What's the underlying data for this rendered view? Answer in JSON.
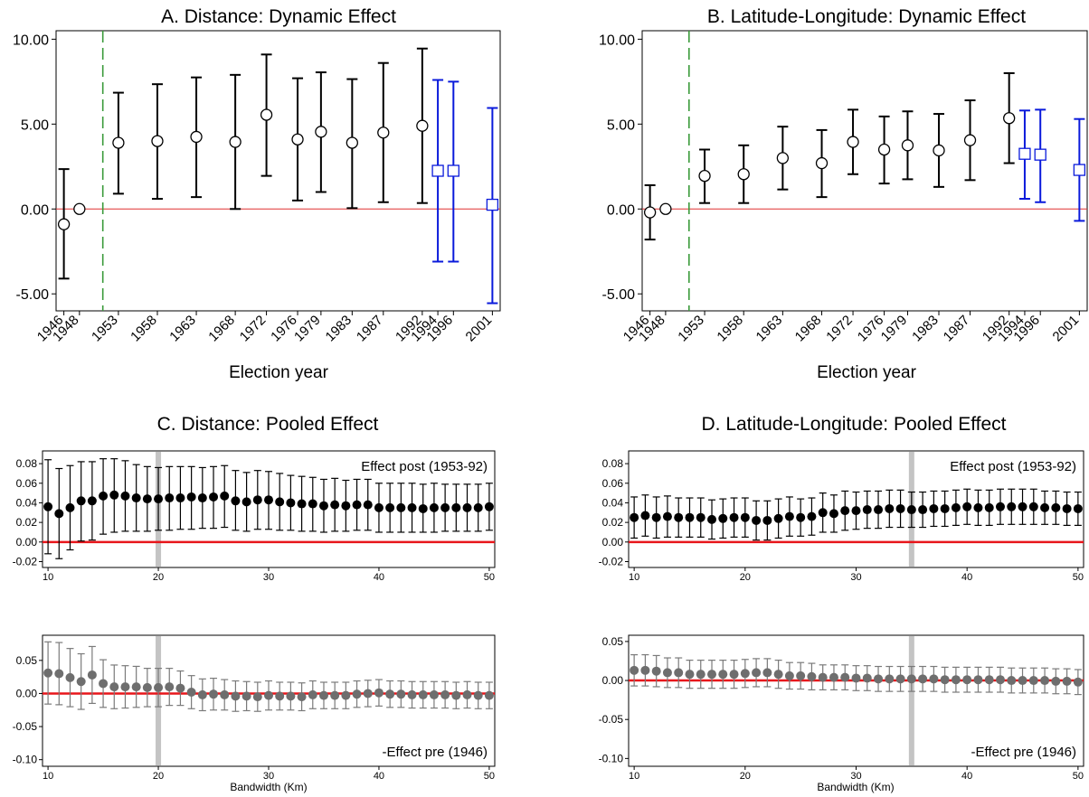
{
  "chart_data": [
    {
      "id": "A",
      "type": "scatter",
      "title": "A. Distance: Dynamic Effect",
      "xlabel": "Election year",
      "ylabel": "",
      "ylim": [
        -6.0,
        10.5
      ],
      "yticks": [
        -5,
        0,
        5,
        10
      ],
      "ytick_labels": [
        "-5.00",
        "0.00",
        "5.00",
        "10.00"
      ],
      "x_min": 1945,
      "x_max": 2002,
      "xticks": [
        1946,
        1948,
        1953,
        1958,
        1963,
        1968,
        1972,
        1976,
        1979,
        1983,
        1987,
        1992,
        1994,
        1996,
        2001
      ],
      "zero_line_color": "#e03030",
      "vline_x": 1951,
      "vline_color": "#3a9a3a",
      "series": [
        {
          "color": "#000000",
          "marker": "circle",
          "x": [
            1946,
            1948,
            1953,
            1958,
            1963,
            1968,
            1972,
            1976,
            1979,
            1983,
            1987,
            1992
          ],
          "y": [
            -0.9,
            0.0,
            3.9,
            4.0,
            4.25,
            3.95,
            5.55,
            4.1,
            4.55,
            3.9,
            4.5,
            4.9
          ],
          "lo": [
            -4.1,
            null,
            0.9,
            0.6,
            0.7,
            0.0,
            1.95,
            0.5,
            1.0,
            0.05,
            0.4,
            0.35
          ],
          "hi": [
            2.35,
            null,
            6.85,
            7.35,
            7.75,
            7.9,
            9.1,
            7.7,
            8.05,
            7.65,
            8.6,
            9.45
          ]
        },
        {
          "color": "#0a1adb",
          "marker": "square",
          "x": [
            1994,
            1996,
            2001
          ],
          "y": [
            2.25,
            2.25,
            0.25
          ],
          "lo": [
            -3.1,
            -3.1,
            -5.55
          ],
          "hi": [
            7.6,
            7.5,
            5.95
          ]
        }
      ]
    },
    {
      "id": "B",
      "type": "scatter",
      "title": "B. Latitude-Longitude: Dynamic Effect",
      "xlabel": "Election year",
      "ylabel": "",
      "ylim": [
        -6.0,
        10.5
      ],
      "yticks": [
        -5,
        0,
        5,
        10
      ],
      "ytick_labels": [
        "-5.00",
        "0.00",
        "5.00",
        "10.00"
      ],
      "x_min": 1945,
      "x_max": 2002,
      "xticks": [
        1946,
        1948,
        1953,
        1958,
        1963,
        1968,
        1972,
        1976,
        1979,
        1983,
        1987,
        1992,
        1994,
        1996,
        2001
      ],
      "zero_line_color": "#e03030",
      "vline_x": 1951,
      "vline_color": "#3a9a3a",
      "series": [
        {
          "color": "#000000",
          "marker": "circle",
          "x": [
            1946,
            1948,
            1953,
            1958,
            1963,
            1968,
            1972,
            1976,
            1979,
            1983,
            1987,
            1992
          ],
          "y": [
            -0.2,
            0.0,
            1.95,
            2.05,
            3.0,
            2.7,
            3.95,
            3.5,
            3.75,
            3.45,
            4.05,
            5.35
          ],
          "lo": [
            -1.8,
            null,
            0.35,
            0.35,
            1.15,
            0.7,
            2.05,
            1.5,
            1.75,
            1.3,
            1.7,
            2.7
          ],
          "hi": [
            1.4,
            null,
            3.5,
            3.75,
            4.85,
            4.65,
            5.85,
            5.45,
            5.75,
            5.6,
            6.4,
            8.0
          ]
        },
        {
          "color": "#0a1adb",
          "marker": "square",
          "x": [
            1994,
            1996,
            2001
          ],
          "y": [
            3.25,
            3.2,
            2.3
          ],
          "lo": [
            0.6,
            0.4,
            -0.7
          ],
          "hi": [
            5.8,
            5.85,
            5.3
          ]
        }
      ]
    },
    {
      "id": "C1",
      "type": "scatter",
      "title": "C. Distance: Pooled Effect",
      "xlabel": "",
      "annotation": "Effect post (1953-92)",
      "annotation_pos": "top-right",
      "ylim": [
        -0.026,
        0.093
      ],
      "yticks": [
        -0.02,
        0.0,
        0.02,
        0.04,
        0.06,
        0.08
      ],
      "ytick_labels": [
        "-0.02",
        "0.00",
        "0.02",
        "0.04",
        "0.06",
        "0.08"
      ],
      "xlim": [
        9.5,
        50.5
      ],
      "xticks": [
        10,
        20,
        30,
        40,
        50
      ],
      "highlight_x": 20,
      "marker_color": "#000000",
      "errbar_color": "#000000",
      "x": [
        10,
        11,
        12,
        13,
        14,
        15,
        16,
        17,
        18,
        19,
        20,
        21,
        22,
        23,
        24,
        25,
        26,
        27,
        28,
        29,
        30,
        31,
        32,
        33,
        34,
        35,
        36,
        37,
        38,
        39,
        40,
        41,
        42,
        43,
        44,
        45,
        46,
        47,
        48,
        49,
        50
      ],
      "y": [
        0.036,
        0.029,
        0.035,
        0.042,
        0.042,
        0.047,
        0.048,
        0.047,
        0.045,
        0.044,
        0.044,
        0.045,
        0.045,
        0.046,
        0.045,
        0.046,
        0.047,
        0.042,
        0.041,
        0.043,
        0.043,
        0.041,
        0.04,
        0.039,
        0.039,
        0.037,
        0.038,
        0.037,
        0.038,
        0.038,
        0.035,
        0.035,
        0.035,
        0.035,
        0.034,
        0.035,
        0.035,
        0.035,
        0.035,
        0.035,
        0.036
      ],
      "lo": [
        -0.012,
        -0.017,
        -0.008,
        0.001,
        0.002,
        0.008,
        0.01,
        0.011,
        0.011,
        0.011,
        0.012,
        0.012,
        0.013,
        0.013,
        0.014,
        0.014,
        0.015,
        0.012,
        0.011,
        0.013,
        0.013,
        0.012,
        0.012,
        0.011,
        0.011,
        0.01,
        0.011,
        0.011,
        0.012,
        0.012,
        0.01,
        0.01,
        0.01,
        0.01,
        0.01,
        0.01,
        0.011,
        0.011,
        0.011,
        0.011,
        0.012
      ],
      "hi": [
        0.084,
        0.075,
        0.078,
        0.082,
        0.082,
        0.085,
        0.085,
        0.083,
        0.079,
        0.077,
        0.076,
        0.077,
        0.077,
        0.077,
        0.076,
        0.077,
        0.078,
        0.073,
        0.071,
        0.073,
        0.072,
        0.07,
        0.068,
        0.067,
        0.066,
        0.064,
        0.065,
        0.063,
        0.064,
        0.064,
        0.06,
        0.06,
        0.06,
        0.06,
        0.059,
        0.06,
        0.059,
        0.059,
        0.059,
        0.059,
        0.06
      ]
    },
    {
      "id": "C2",
      "type": "scatter",
      "title": "",
      "xlabel": "Bandwidth (Km)",
      "annotation": "-Effect pre (1946)",
      "annotation_pos": "bottom-right",
      "ylim": [
        -0.11,
        0.088
      ],
      "yticks": [
        -0.1,
        -0.05,
        0.0,
        0.05
      ],
      "ytick_labels": [
        "-0.10",
        "-0.05",
        "0.00",
        "0.05"
      ],
      "xlim": [
        9.5,
        50.5
      ],
      "xticks": [
        10,
        20,
        30,
        40,
        50
      ],
      "highlight_x": 20,
      "marker_color": "#6e6e6e",
      "errbar_color": "#7a7a7a",
      "x": [
        10,
        11,
        12,
        13,
        14,
        15,
        16,
        17,
        18,
        19,
        20,
        21,
        22,
        23,
        24,
        25,
        26,
        27,
        28,
        29,
        30,
        31,
        32,
        33,
        34,
        35,
        36,
        37,
        38,
        39,
        40,
        41,
        42,
        43,
        44,
        45,
        46,
        47,
        48,
        49,
        50
      ],
      "y": [
        0.031,
        0.03,
        0.024,
        0.018,
        0.028,
        0.015,
        0.01,
        0.01,
        0.01,
        0.009,
        0.009,
        0.01,
        0.008,
        0.002,
        -0.002,
        -0.001,
        -0.002,
        -0.004,
        -0.004,
        -0.005,
        -0.003,
        -0.004,
        -0.004,
        -0.005,
        -0.002,
        -0.003,
        -0.003,
        -0.003,
        -0.001,
        0.0,
        0.001,
        -0.001,
        -0.001,
        -0.002,
        -0.002,
        -0.002,
        -0.002,
        -0.003,
        -0.002,
        -0.003,
        -0.003
      ],
      "lo": [
        -0.016,
        -0.017,
        -0.02,
        -0.024,
        -0.015,
        -0.021,
        -0.023,
        -0.022,
        -0.021,
        -0.02,
        -0.02,
        -0.018,
        -0.018,
        -0.023,
        -0.026,
        -0.025,
        -0.025,
        -0.027,
        -0.026,
        -0.027,
        -0.025,
        -0.025,
        -0.025,
        -0.026,
        -0.023,
        -0.023,
        -0.023,
        -0.023,
        -0.021,
        -0.02,
        -0.019,
        -0.021,
        -0.021,
        -0.022,
        -0.022,
        -0.022,
        -0.022,
        -0.023,
        -0.022,
        -0.023,
        -0.023
      ],
      "hi": [
        0.078,
        0.077,
        0.068,
        0.06,
        0.071,
        0.051,
        0.043,
        0.042,
        0.041,
        0.038,
        0.038,
        0.038,
        0.034,
        0.027,
        0.022,
        0.023,
        0.021,
        0.019,
        0.018,
        0.017,
        0.019,
        0.017,
        0.017,
        0.016,
        0.019,
        0.017,
        0.017,
        0.017,
        0.019,
        0.02,
        0.021,
        0.019,
        0.019,
        0.018,
        0.018,
        0.018,
        0.018,
        0.017,
        0.018,
        0.017,
        0.017
      ]
    },
    {
      "id": "D1",
      "type": "scatter",
      "title": "D. Latitude-Longitude: Pooled Effect",
      "xlabel": "",
      "annotation": "Effect post (1953-92)",
      "annotation_pos": "top-right",
      "ylim": [
        -0.026,
        0.093
      ],
      "yticks": [
        -0.02,
        0.0,
        0.02,
        0.04,
        0.06,
        0.08
      ],
      "ytick_labels": [
        "-0.02",
        "0.00",
        "0.02",
        "0.04",
        "0.06",
        "0.08"
      ],
      "xlim": [
        9.5,
        50.5
      ],
      "xticks": [
        10,
        20,
        30,
        40,
        50
      ],
      "highlight_x": 35,
      "marker_color": "#000000",
      "errbar_color": "#000000",
      "x": [
        10,
        11,
        12,
        13,
        14,
        15,
        16,
        17,
        18,
        19,
        20,
        21,
        22,
        23,
        24,
        25,
        26,
        27,
        28,
        29,
        30,
        31,
        32,
        33,
        34,
        35,
        36,
        37,
        38,
        39,
        40,
        41,
        42,
        43,
        44,
        45,
        46,
        47,
        48,
        49,
        50
      ],
      "y": [
        0.025,
        0.027,
        0.025,
        0.026,
        0.025,
        0.025,
        0.025,
        0.023,
        0.024,
        0.025,
        0.025,
        0.022,
        0.022,
        0.024,
        0.026,
        0.025,
        0.026,
        0.03,
        0.029,
        0.032,
        0.032,
        0.033,
        0.033,
        0.034,
        0.034,
        0.033,
        0.033,
        0.034,
        0.034,
        0.035,
        0.036,
        0.035,
        0.035,
        0.036,
        0.036,
        0.036,
        0.036,
        0.035,
        0.035,
        0.034,
        0.034
      ],
      "lo": [
        0.004,
        0.006,
        0.004,
        0.005,
        0.005,
        0.005,
        0.005,
        0.003,
        0.004,
        0.005,
        0.005,
        0.002,
        0.002,
        0.004,
        0.006,
        0.006,
        0.007,
        0.01,
        0.01,
        0.012,
        0.013,
        0.014,
        0.014,
        0.015,
        0.015,
        0.015,
        0.015,
        0.016,
        0.016,
        0.017,
        0.018,
        0.017,
        0.017,
        0.018,
        0.018,
        0.018,
        0.018,
        0.018,
        0.018,
        0.017,
        0.017
      ],
      "hi": [
        0.046,
        0.048,
        0.046,
        0.047,
        0.045,
        0.045,
        0.045,
        0.043,
        0.044,
        0.045,
        0.045,
        0.042,
        0.042,
        0.044,
        0.046,
        0.044,
        0.045,
        0.05,
        0.048,
        0.052,
        0.051,
        0.052,
        0.052,
        0.053,
        0.053,
        0.051,
        0.051,
        0.052,
        0.052,
        0.053,
        0.054,
        0.053,
        0.053,
        0.054,
        0.054,
        0.054,
        0.054,
        0.052,
        0.052,
        0.051,
        0.051
      ]
    },
    {
      "id": "D2",
      "type": "scatter",
      "title": "",
      "xlabel": "Bandwidth (Km)",
      "annotation": "-Effect pre (1946)",
      "annotation_pos": "bottom-right",
      "ylim": [
        -0.11,
        0.058
      ],
      "yticks": [
        -0.1,
        -0.05,
        0.0,
        0.05
      ],
      "ytick_labels": [
        "-0.10",
        "-0.05",
        "0.00",
        "0.05"
      ],
      "xlim": [
        9.5,
        50.5
      ],
      "xticks": [
        10,
        20,
        30,
        40,
        50
      ],
      "highlight_x": 35,
      "marker_color": "#6e6e6e",
      "errbar_color": "#7a7a7a",
      "x": [
        10,
        11,
        12,
        13,
        14,
        15,
        16,
        17,
        18,
        19,
        20,
        21,
        22,
        23,
        24,
        25,
        26,
        27,
        28,
        29,
        30,
        31,
        32,
        33,
        34,
        35,
        36,
        37,
        38,
        39,
        40,
        41,
        42,
        43,
        44,
        45,
        46,
        47,
        48,
        49,
        50
      ],
      "y": [
        0.013,
        0.013,
        0.012,
        0.01,
        0.01,
        0.008,
        0.008,
        0.008,
        0.008,
        0.008,
        0.009,
        0.01,
        0.01,
        0.008,
        0.006,
        0.006,
        0.005,
        0.004,
        0.004,
        0.004,
        0.003,
        0.003,
        0.002,
        0.002,
        0.002,
        0.002,
        0.002,
        0.002,
        0.001,
        0.001,
        0.001,
        0.001,
        0.001,
        0.001,
        0.0,
        0.0,
        0.0,
        0.0,
        -0.001,
        -0.001,
        -0.002
      ],
      "lo": [
        -0.007,
        -0.007,
        -0.008,
        -0.009,
        -0.009,
        -0.01,
        -0.01,
        -0.01,
        -0.01,
        -0.01,
        -0.009,
        -0.008,
        -0.008,
        -0.01,
        -0.011,
        -0.011,
        -0.012,
        -0.012,
        -0.012,
        -0.012,
        -0.013,
        -0.013,
        -0.014,
        -0.014,
        -0.014,
        -0.014,
        -0.014,
        -0.014,
        -0.015,
        -0.015,
        -0.015,
        -0.015,
        -0.015,
        -0.015,
        -0.016,
        -0.016,
        -0.016,
        -0.016,
        -0.017,
        -0.017,
        -0.018
      ],
      "hi": [
        0.033,
        0.033,
        0.032,
        0.029,
        0.029,
        0.026,
        0.026,
        0.026,
        0.026,
        0.026,
        0.027,
        0.028,
        0.028,
        0.026,
        0.023,
        0.023,
        0.022,
        0.02,
        0.02,
        0.02,
        0.019,
        0.019,
        0.018,
        0.018,
        0.018,
        0.018,
        0.018,
        0.018,
        0.017,
        0.017,
        0.017,
        0.017,
        0.017,
        0.017,
        0.016,
        0.016,
        0.016,
        0.016,
        0.015,
        0.015,
        0.014
      ]
    }
  ]
}
